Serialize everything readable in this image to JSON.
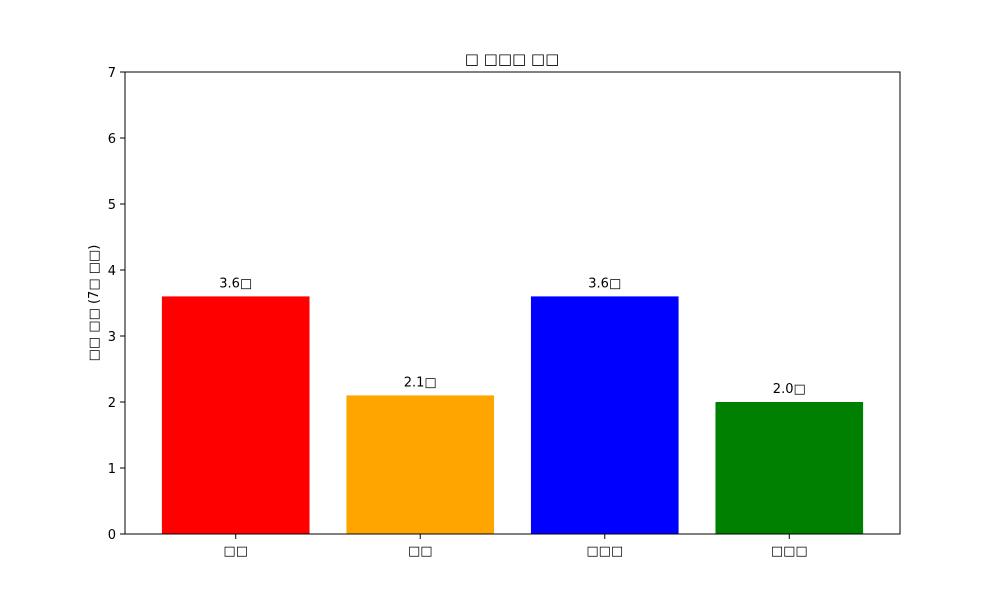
{
  "chart_data": {
    "type": "bar",
    "title": "□ □□□ □□",
    "xlabel": "",
    "ylabel": "□□ □□ (7□ □□)",
    "categories": [
      "□□",
      "□□",
      "□□□",
      "□□□"
    ],
    "values": [
      3.6,
      2.1,
      3.6,
      2.0
    ],
    "data_labels": [
      "3.6□",
      "2.1□",
      "3.6□",
      "2.0□"
    ],
    "colors": [
      "#ff0000",
      "#ffa500",
      "#0000ff",
      "#008000"
    ],
    "ylim": [
      0,
      7
    ],
    "yticks": [
      0,
      1,
      2,
      3,
      4,
      5,
      6,
      7
    ],
    "grid": false,
    "legend": "none"
  }
}
